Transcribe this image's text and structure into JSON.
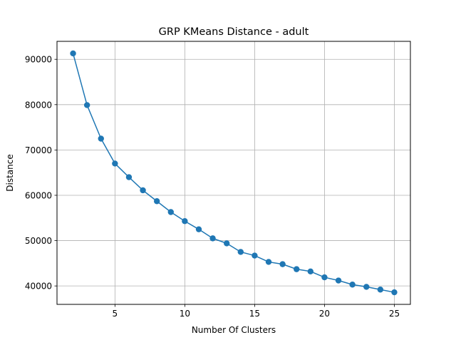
{
  "chart_data": {
    "type": "line",
    "title": "GRP KMeans Distance - adult",
    "xlabel": "Number Of Clusters",
    "ylabel": "Distance",
    "x": [
      2,
      3,
      4,
      5,
      6,
      7,
      8,
      9,
      10,
      11,
      12,
      13,
      14,
      15,
      16,
      17,
      18,
      19,
      20,
      21,
      22,
      23,
      24,
      25
    ],
    "series": [
      {
        "values": [
          91300,
          79900,
          72500,
          67000,
          64000,
          61100,
          58700,
          56300,
          54300,
          52500,
          50500,
          49400,
          47500,
          46700,
          45300,
          44800,
          43700,
          43200,
          41900,
          41200,
          40300,
          39800,
          39200,
          38600
        ],
        "color": "#1f77b4",
        "marker": "circle"
      }
    ],
    "xlim": [
      0.85,
      26.15
    ],
    "ylim": [
      35935,
      93965
    ],
    "xticks": [
      5,
      10,
      15,
      20,
      25
    ],
    "xtick_labels": [
      "5",
      "10",
      "15",
      "20",
      "25"
    ],
    "yticks": [
      40000,
      50000,
      60000,
      70000,
      80000,
      90000
    ],
    "ytick_labels": [
      "40000",
      "50000",
      "60000",
      "70000",
      "80000",
      "90000"
    ],
    "grid": true,
    "legend": false
  }
}
